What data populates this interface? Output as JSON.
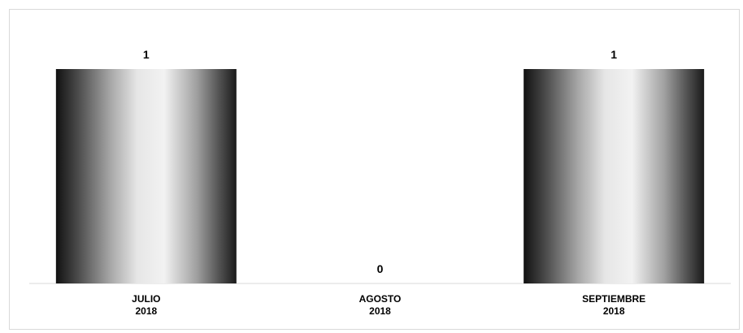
{
  "chart_data": {
    "type": "bar",
    "title": "",
    "xlabel": "",
    "ylabel": "",
    "categories": [
      [
        "JULIO",
        "2018"
      ],
      [
        "AGOSTO",
        "2018"
      ],
      [
        "SEPTIEMBRE",
        "2018"
      ]
    ],
    "values": [
      1,
      0,
      1
    ],
    "ylim": [
      0,
      1
    ],
    "data_labels": true,
    "grid": false,
    "legend": false,
    "bar_fill": "metallic-gradient",
    "colors": {
      "bar_dark": "#111111",
      "bar_light": "#f2f2f2",
      "axis": "#d9d9d9",
      "text": "#000000"
    }
  }
}
